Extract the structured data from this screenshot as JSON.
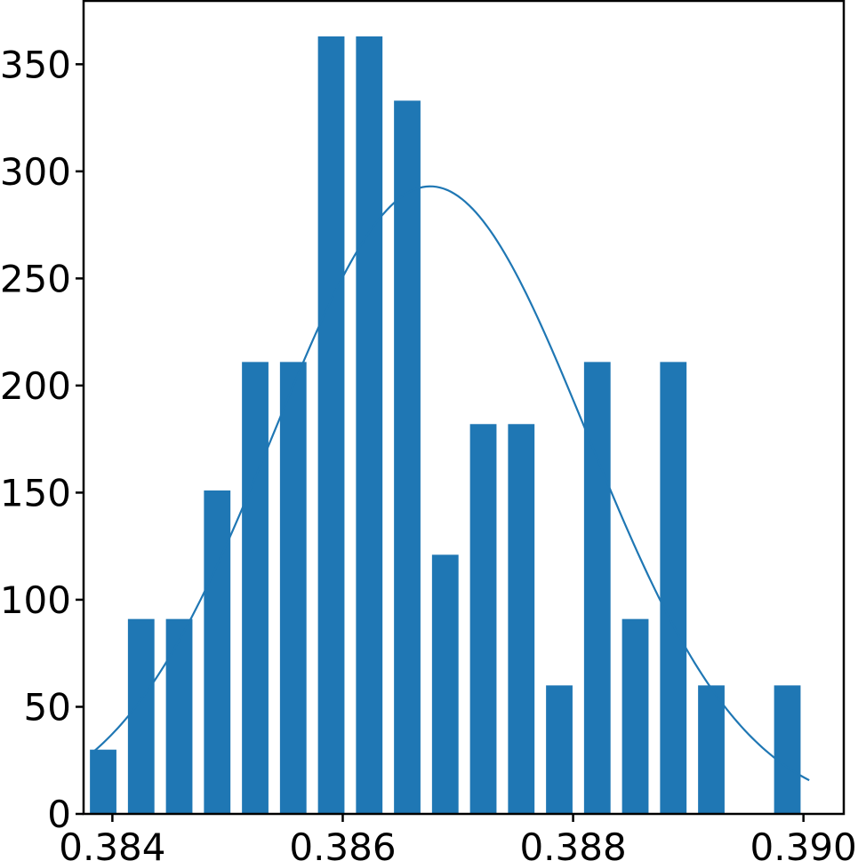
{
  "chart_data": {
    "type": "bar",
    "title": "",
    "xlabel": "",
    "ylabel": "",
    "xlim": [
      0.38375,
      0.39035
    ],
    "ylim": [
      0,
      380
    ],
    "bar_width": 0.00023,
    "color": "#1f77b4",
    "bars": [
      {
        "x": 0.38392,
        "value": 30
      },
      {
        "x": 0.38425,
        "value": 91
      },
      {
        "x": 0.38458,
        "value": 91
      },
      {
        "x": 0.38491,
        "value": 151
      },
      {
        "x": 0.38524,
        "value": 211
      },
      {
        "x": 0.38557,
        "value": 211
      },
      {
        "x": 0.3859,
        "value": 363
      },
      {
        "x": 0.38623,
        "value": 363
      },
      {
        "x": 0.38656,
        "value": 333
      },
      {
        "x": 0.38689,
        "value": 121
      },
      {
        "x": 0.38722,
        "value": 182
      },
      {
        "x": 0.38755,
        "value": 182
      },
      {
        "x": 0.38788,
        "value": 60
      },
      {
        "x": 0.38821,
        "value": 211
      },
      {
        "x": 0.38854,
        "value": 91
      },
      {
        "x": 0.38887,
        "value": 211
      },
      {
        "x": 0.3892,
        "value": 60
      },
      {
        "x": 0.38986,
        "value": 60
      }
    ],
    "curve": {
      "type": "normal-density",
      "mean": 0.38676,
      "std": 0.00136,
      "peak": 293,
      "x_range": [
        0.38383,
        0.39005
      ]
    },
    "xticks": [
      {
        "value": 0.384,
        "label": "0.384"
      },
      {
        "value": 0.386,
        "label": "0.386"
      },
      {
        "value": 0.388,
        "label": "0.388"
      },
      {
        "value": 0.39,
        "label": "0.390"
      }
    ],
    "yticks": [
      {
        "value": 0,
        "label": "0"
      },
      {
        "value": 50,
        "label": "50"
      },
      {
        "value": 100,
        "label": "100"
      },
      {
        "value": 150,
        "label": "150"
      },
      {
        "value": 200,
        "label": "200"
      },
      {
        "value": 250,
        "label": "250"
      },
      {
        "value": 300,
        "label": "300"
      },
      {
        "value": 350,
        "label": "350"
      }
    ],
    "grid": false,
    "legend": "none"
  }
}
